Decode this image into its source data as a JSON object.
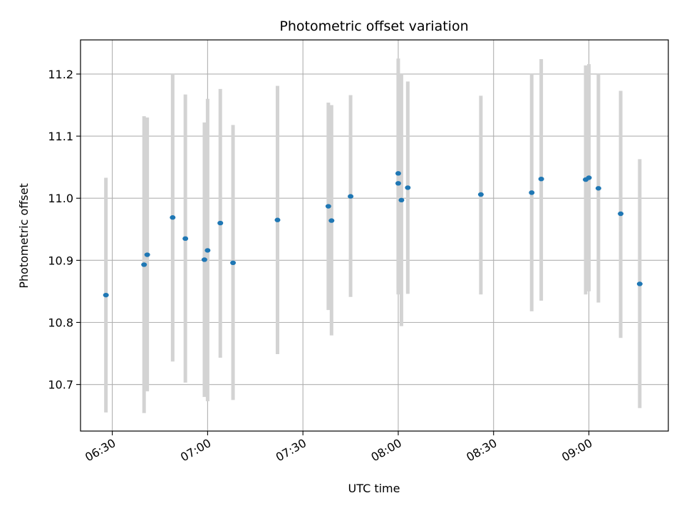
{
  "chart_data": {
    "type": "scatter",
    "title": "Photometric offset variation",
    "xlabel": "UTC time",
    "ylabel": "Photometric offset",
    "x_is_time": true,
    "xlim": [
      "06:20",
      "09:25"
    ],
    "ylim": [
      10.625,
      11.255
    ],
    "grid": true,
    "xticks": [
      "06:30",
      "07:00",
      "07:30",
      "08:00",
      "08:30",
      "09:00"
    ],
    "yticks": [
      10.7,
      10.8,
      10.9,
      11.0,
      11.1,
      11.2
    ],
    "marker_color": "#1f77b4",
    "errorbar_color": "#d3d3d3",
    "points": [
      {
        "x": "06:28",
        "y": 10.844,
        "ylow": 10.655,
        "yhigh": 11.033
      },
      {
        "x": "06:40",
        "y": 10.893,
        "ylow": 10.654,
        "yhigh": 11.132
      },
      {
        "x": "06:41",
        "y": 10.909,
        "ylow": 10.689,
        "yhigh": 11.13
      },
      {
        "x": "06:49",
        "y": 10.969,
        "ylow": 10.737,
        "yhigh": 11.2
      },
      {
        "x": "06:53",
        "y": 10.935,
        "ylow": 10.703,
        "yhigh": 11.167
      },
      {
        "x": "06:59",
        "y": 10.901,
        "ylow": 10.68,
        "yhigh": 11.122
      },
      {
        "x": "07:00",
        "y": 10.916,
        "ylow": 10.673,
        "yhigh": 11.16
      },
      {
        "x": "07:04",
        "y": 10.96,
        "ylow": 10.743,
        "yhigh": 11.176
      },
      {
        "x": "07:08",
        "y": 10.896,
        "ylow": 10.675,
        "yhigh": 11.118
      },
      {
        "x": "07:22",
        "y": 10.965,
        "ylow": 10.749,
        "yhigh": 11.181
      },
      {
        "x": "07:38",
        "y": 10.987,
        "ylow": 10.82,
        "yhigh": 11.154
      },
      {
        "x": "07:39",
        "y": 10.964,
        "ylow": 10.779,
        "yhigh": 11.15
      },
      {
        "x": "07:45",
        "y": 11.003,
        "ylow": 10.841,
        "yhigh": 11.166
      },
      {
        "x": "08:00",
        "y": 11.04,
        "ylow": 10.856,
        "yhigh": 11.225
      },
      {
        "x": "08:00",
        "y": 11.024,
        "ylow": 10.845,
        "yhigh": 11.203
      },
      {
        "x": "08:01",
        "y": 10.997,
        "ylow": 10.794,
        "yhigh": 11.2
      },
      {
        "x": "08:03",
        "y": 11.017,
        "ylow": 10.846,
        "yhigh": 11.188
      },
      {
        "x": "08:26",
        "y": 11.006,
        "ylow": 10.845,
        "yhigh": 11.165
      },
      {
        "x": "08:42",
        "y": 11.009,
        "ylow": 10.818,
        "yhigh": 11.2
      },
      {
        "x": "08:45",
        "y": 11.031,
        "ylow": 10.835,
        "yhigh": 11.224
      },
      {
        "x": "08:59",
        "y": 11.03,
        "ylow": 10.845,
        "yhigh": 11.214
      },
      {
        "x": "09:00",
        "y": 11.033,
        "ylow": 10.85,
        "yhigh": 11.216
      },
      {
        "x": "09:03",
        "y": 11.016,
        "ylow": 10.832,
        "yhigh": 11.2
      },
      {
        "x": "09:10",
        "y": 10.975,
        "ylow": 10.775,
        "yhigh": 11.173
      },
      {
        "x": "09:16",
        "y": 10.862,
        "ylow": 10.662,
        "yhigh": 11.063
      }
    ]
  }
}
